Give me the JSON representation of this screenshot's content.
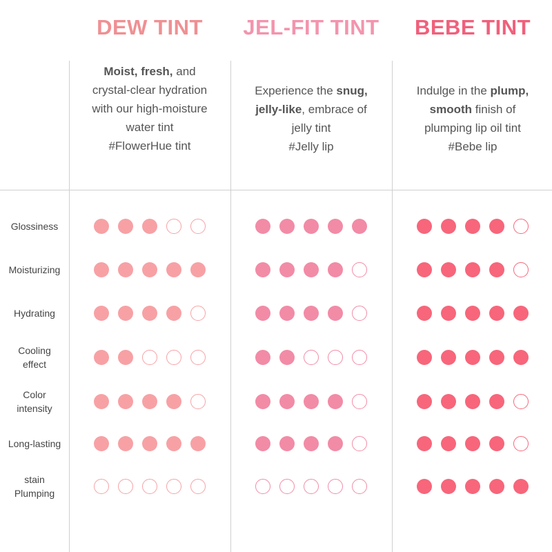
{
  "products": [
    {
      "name": "DEW TINT",
      "title_color": "#ef9093",
      "dot_color": "#f7a1a5",
      "description": [
        [
          {
            "t": "Moist, fresh,",
            "b": true
          },
          {
            "t": " and",
            "b": false
          }
        ],
        [
          {
            "t": "crystal-clear hydration",
            "b": false
          }
        ],
        [
          {
            "t": "with our high-moisture",
            "b": false
          }
        ],
        [
          {
            "t": "water tint",
            "b": false
          }
        ],
        [
          {
            "t": "#FlowerHue tint",
            "b": false
          }
        ]
      ],
      "ratings": [
        3,
        5,
        4,
        2,
        4,
        5,
        0
      ]
    },
    {
      "name": "JEL-FIT TINT",
      "title_color": "#f394ad",
      "dot_color": "#f28ba6",
      "description": [
        [
          {
            "t": "Experience the ",
            "b": false
          },
          {
            "t": "snug,",
            "b": true
          }
        ],
        [
          {
            "t": "jelly-like",
            "b": true
          },
          {
            "t": ", embrace of",
            "b": false
          }
        ],
        [
          {
            "t": "jelly tint",
            "b": false
          }
        ],
        [
          {
            "t": "#Jelly lip",
            "b": false
          }
        ]
      ],
      "ratings": [
        5,
        4,
        4,
        2,
        4,
        4,
        0
      ]
    },
    {
      "name": "BEBE TINT",
      "title_color": "#f0607b",
      "dot_color": "#f7667b",
      "description": [
        [
          {
            "t": "Indulge in the ",
            "b": false
          },
          {
            "t": "plump,",
            "b": true
          }
        ],
        [
          {
            "t": "smooth",
            "b": true
          },
          {
            "t": " finish of",
            "b": false
          }
        ],
        [
          {
            "t": "plumping lip oil tint",
            "b": false
          }
        ],
        [
          {
            "t": "#Bebe lip",
            "b": false
          }
        ]
      ],
      "ratings": [
        4,
        4,
        5,
        5,
        4,
        4,
        5
      ]
    }
  ],
  "max_rating": 5,
  "attributes": [
    [
      "Glossiness"
    ],
    [
      "Moisturizing"
    ],
    [
      "Hydrating"
    ],
    [
      "Cooling",
      "effect"
    ],
    [
      "Color",
      "intensity"
    ],
    [
      "Long-lasting"
    ],
    [
      "stain",
      "Plumping"
    ]
  ]
}
